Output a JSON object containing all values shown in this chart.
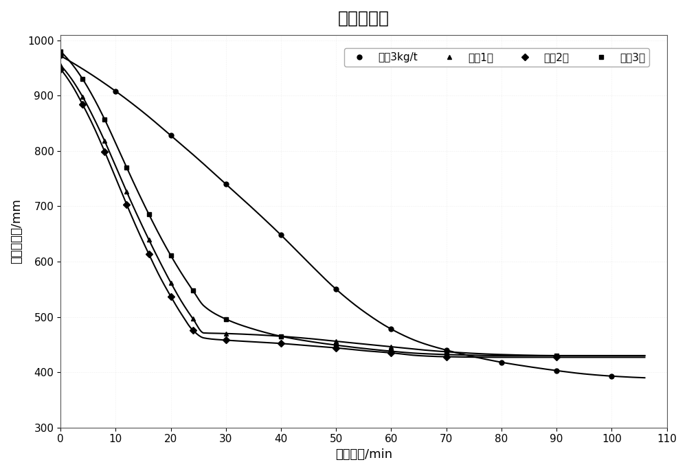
{
  "title": "沉降曲线图",
  "xlabel": "沉降时间/min",
  "ylabel": "矿浆层高度/mm",
  "xlim": [
    0,
    110
  ],
  "ylim": [
    300,
    1010
  ],
  "yticks": [
    300,
    400,
    500,
    600,
    700,
    800,
    900,
    1000
  ],
  "xticks": [
    0,
    10,
    20,
    30,
    40,
    50,
    60,
    70,
    80,
    90,
    100,
    110
  ],
  "series": [
    {
      "label": "石灰3kg/t",
      "marker": "o",
      "color": "#000000",
      "x": [
        0,
        2,
        4,
        6,
        8,
        10,
        12,
        14,
        16,
        18,
        20,
        22,
        24,
        26,
        28,
        30,
        32,
        34,
        36,
        38,
        40,
        42,
        44,
        46,
        48,
        50,
        52,
        54,
        56,
        58,
        60,
        62,
        64,
        66,
        68,
        70,
        72,
        74,
        76,
        78,
        80,
        82,
        84,
        86,
        88,
        90,
        92,
        94,
        96,
        98,
        100,
        102,
        104,
        106
      ],
      "y": [
        970,
        960,
        950,
        938,
        924,
        908,
        890,
        870,
        848,
        824,
        798,
        771,
        743,
        714,
        684,
        654,
        624,
        595,
        567,
        541,
        517,
        496,
        477,
        461,
        448,
        438,
        430,
        424,
        419,
        415,
        411,
        408,
        404,
        401,
        398,
        415,
        412,
        409,
        407,
        405,
        402,
        400,
        398,
        396,
        395,
        394,
        393,
        392,
        391,
        391,
        390,
        390,
        390,
        390
      ]
    },
    {
      "label": "配比1号",
      "marker": "^",
      "color": "#000000",
      "x": [
        0,
        1,
        2,
        3,
        4,
        5,
        6,
        7,
        8,
        9,
        10,
        11,
        12,
        13,
        14,
        15,
        16,
        18,
        20,
        22,
        24,
        26,
        28,
        30,
        32,
        34,
        36,
        38,
        40,
        42,
        44,
        46,
        48,
        50,
        52,
        54,
        56,
        58,
        60,
        62,
        65,
        68,
        72,
        76,
        80,
        84,
        88,
        92,
        96,
        100,
        106
      ],
      "y": [
        955,
        940,
        918,
        892,
        862,
        828,
        790,
        750,
        708,
        667,
        629,
        594,
        562,
        533,
        507,
        484,
        464,
        430,
        405,
        485,
        478,
        472,
        467,
        463,
        459,
        456,
        453,
        450,
        447,
        444,
        441,
        438,
        435,
        432,
        430,
        428,
        436,
        435,
        434,
        433,
        432,
        431,
        430,
        430,
        430,
        430,
        430,
        430,
        430,
        430,
        430
      ]
    },
    {
      "label": "配比2号",
      "marker": "D",
      "color": "#000000",
      "x": [
        0,
        1,
        2,
        3,
        4,
        5,
        6,
        7,
        8,
        9,
        10,
        11,
        12,
        13,
        14,
        15,
        16,
        18,
        20,
        22,
        24,
        26,
        28,
        30,
        32,
        34,
        36,
        38,
        40,
        42,
        44,
        46,
        48,
        50,
        52,
        54,
        56,
        58,
        60,
        62,
        65,
        68,
        72,
        76,
        80,
        84,
        88,
        92,
        96,
        100,
        106
      ],
      "y": [
        948,
        930,
        906,
        878,
        846,
        810,
        770,
        729,
        688,
        648,
        611,
        577,
        547,
        521,
        498,
        479,
        463,
        436,
        414,
        396,
        478,
        472,
        466,
        461,
        457,
        453,
        450,
        447,
        444,
        441,
        438,
        435,
        432,
        429,
        427,
        425,
        433,
        432,
        431,
        430,
        429,
        428,
        427,
        427,
        427,
        427,
        427,
        427,
        427,
        427,
        427
      ]
    },
    {
      "label": "配备3号",
      "marker": "s",
      "color": "#000000",
      "x": [
        0,
        1,
        2,
        3,
        4,
        5,
        6,
        7,
        8,
        9,
        10,
        11,
        12,
        13,
        14,
        15,
        16,
        18,
        20,
        22,
        24,
        26,
        28,
        30,
        32,
        34,
        36,
        38,
        40,
        42,
        44,
        46,
        48,
        50,
        52,
        54,
        56,
        58,
        60,
        62,
        65,
        68,
        72,
        76,
        80,
        84,
        88,
        92,
        96,
        100,
        106
      ],
      "y": [
        980,
        966,
        948,
        926,
        900,
        869,
        833,
        793,
        751,
        709,
        670,
        633,
        600,
        571,
        546,
        524,
        505,
        475,
        450,
        429,
        411,
        489,
        483,
        477,
        472,
        468,
        464,
        460,
        456,
        452,
        448,
        444,
        441,
        438,
        435,
        432,
        440,
        438,
        436,
        435,
        433,
        432,
        431,
        431,
        430,
        430,
        430,
        430,
        430,
        430,
        430
      ]
    }
  ],
  "background_color": "#ffffff",
  "title_fontsize": 18,
  "axis_fontsize": 13,
  "tick_fontsize": 11,
  "legend_fontsize": 11,
  "markersize": 5,
  "linewidth": 1.5
}
